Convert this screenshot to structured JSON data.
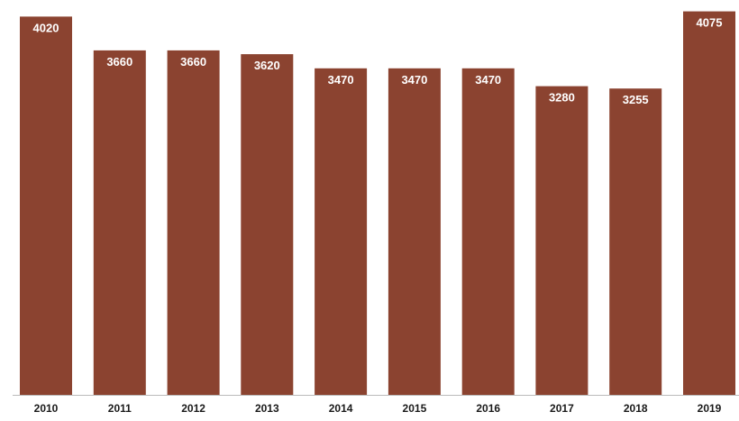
{
  "chart_data": {
    "type": "bar",
    "categories": [
      "2010",
      "2011",
      "2012",
      "2013",
      "2014",
      "2015",
      "2016",
      "2017",
      "2018",
      "2019"
    ],
    "values": [
      4020,
      3660,
      3660,
      3620,
      3470,
      3470,
      3470,
      3280,
      3255,
      4075
    ],
    "data_labels": [
      "4020",
      "3660",
      "3660",
      "3620",
      "3470",
      "3470",
      "3470",
      "3280",
      "3255",
      "4075"
    ],
    "title": "",
    "xlabel": "",
    "ylabel": "",
    "ylim": [
      0,
      4100
    ],
    "grid": false,
    "legend": "none",
    "bar_color": "#8B4330",
    "axis_color": "#bbbbbb"
  }
}
